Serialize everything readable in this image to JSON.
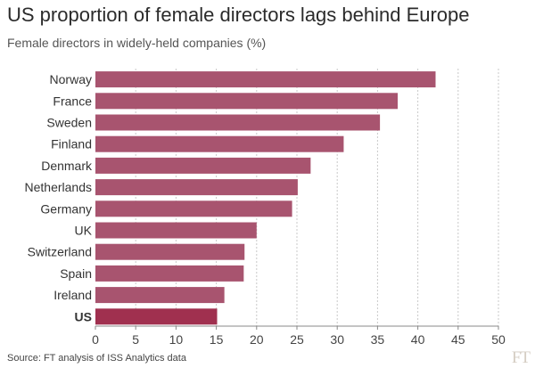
{
  "header": {
    "title": "US proportion of female directors lags behind Europe",
    "subtitle": "Female directors in widely-held companies (%)"
  },
  "footer": {
    "source": "Source: FT analysis of ISS Analytics data",
    "logo": "FT"
  },
  "colors": {
    "bar": "#a8546f",
    "highlight_bar": "#a0304f",
    "grid": "#c9c9c9",
    "axis": "#888888"
  },
  "chart_data": {
    "type": "bar",
    "orientation": "horizontal",
    "title": "US proportion of female directors lags behind Europe",
    "subtitle": "Female directors in widely-held companies (%)",
    "categories": [
      "Norway",
      "France",
      "Sweden",
      "Finland",
      "Denmark",
      "Netherlands",
      "Germany",
      "UK",
      "Switzerland",
      "Spain",
      "Ireland",
      "US"
    ],
    "values": [
      42.2,
      37.5,
      35.3,
      30.8,
      26.7,
      25.1,
      24.4,
      20.0,
      18.5,
      18.4,
      16.0,
      15.1
    ],
    "highlight": "US",
    "xlim": [
      0,
      50
    ],
    "xticks": [
      0,
      5,
      10,
      15,
      20,
      25,
      30,
      35,
      40,
      45,
      50
    ],
    "grid": true
  }
}
